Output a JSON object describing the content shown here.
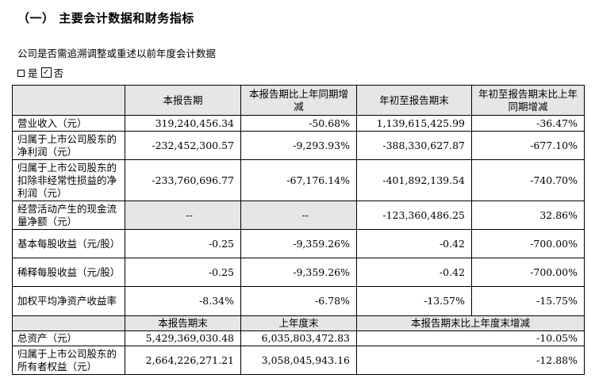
{
  "title": "（一） 主要会计数据和财务指标",
  "question": "公司是否需追溯调整或重述以前年度会计数据",
  "answer": {
    "yes_label": "是",
    "no_label": "否",
    "check_mark": "✓"
  },
  "table1": {
    "headers": [
      "",
      "本报告期",
      "本报告期比上年同期增减",
      "年初至报告期末",
      "年初至报告期末比上年同期增减"
    ],
    "rows": [
      [
        "营业收入（元）",
        "319,240,456.34",
        "-50.68%",
        "1,139,615,425.99",
        "-36.47%"
      ],
      [
        "归属于上市公司股东的净利润（元）",
        "-232,452,300.57",
        "-9,293.93%",
        "-388,330,627.87",
        "-677.10%"
      ],
      [
        "归属于上市公司股东的扣除非经常性损益的净利润（元）",
        "-233,760,696.77",
        "-67,176.14%",
        "-401,892,139.54",
        "-740.70%"
      ],
      [
        "经营活动产生的现金流量净额（元）",
        "--",
        "--",
        "-123,360,486.25",
        "32.86%"
      ],
      [
        "基本每股收益（元/股）",
        "-0.25",
        "-9,359.26%",
        "-0.42",
        "-700.00%"
      ],
      [
        "稀释每股收益（元/股）",
        "-0.25",
        "-9,359.26%",
        "-0.42",
        "-700.00%"
      ],
      [
        "加权平均净资产收益率",
        "-8.34%",
        "-6.78%",
        "-13.57%",
        "-15.75%"
      ]
    ]
  },
  "table2": {
    "headers": [
      "",
      "本报告期末",
      "上年度末",
      "本报告期末比上年度末增减"
    ],
    "rows": [
      [
        "总资产（元）",
        "5,429,369,030.48",
        "6,035,803,472.83",
        "-10.05%"
      ],
      [
        "归属于上市公司股东的所有者权益（元）",
        "2,664,226,271.21",
        "3,058,045,943.16",
        "-12.88%"
      ]
    ]
  }
}
